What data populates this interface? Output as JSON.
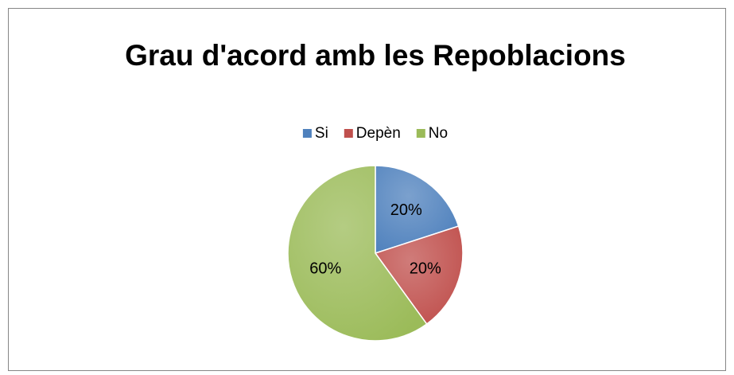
{
  "chart_data": {
    "type": "pie",
    "title": "Grau d'acord amb les Repoblacions",
    "categories": [
      "Si",
      "Depèn",
      "No"
    ],
    "values": [
      20,
      20,
      60
    ],
    "value_labels": [
      "20%",
      "20%",
      "60%"
    ],
    "colors": [
      "#4f81bd",
      "#c0504d",
      "#9bbb59"
    ],
    "legend": "top"
  }
}
